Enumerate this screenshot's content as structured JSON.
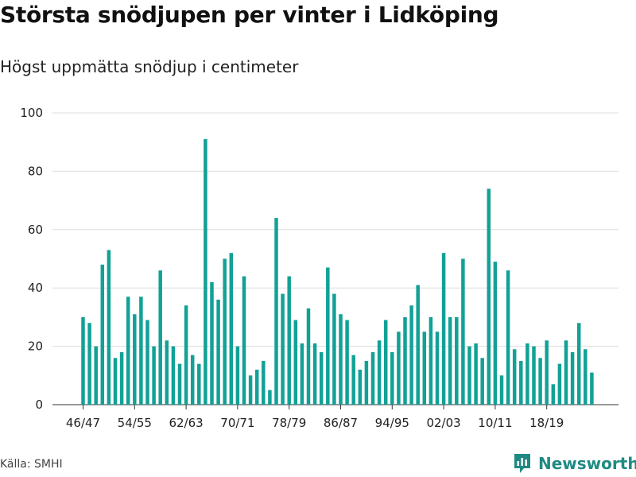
{
  "title": "Största snödjupen per vinter i Lidköping",
  "subtitle": "Högst uppmätta snödjup i centimeter",
  "source": "Källa: SMHI",
  "brand": "Newsworthy",
  "colors": {
    "bar": "#12a196",
    "grid": "#dddddd",
    "brand": "#1f8a83"
  },
  "chart_data": {
    "type": "bar",
    "title": "Största snödjupen per vinter i Lidköping",
    "subtitle": "Högst uppmätta snödjup i centimeter",
    "xlabel": "",
    "ylabel": "",
    "ylim": [
      0,
      100
    ],
    "yticks": [
      0,
      20,
      40,
      60,
      80,
      100
    ],
    "grid": true,
    "categories": [
      "46/47",
      "47/48",
      "48/49",
      "49/50",
      "50/51",
      "51/52",
      "52/53",
      "53/54",
      "54/55",
      "55/56",
      "56/57",
      "57/58",
      "58/59",
      "59/60",
      "60/61",
      "61/62",
      "62/63",
      "63/64",
      "64/65",
      "65/66",
      "66/67",
      "67/68",
      "68/69",
      "69/70",
      "70/71",
      "71/72",
      "72/73",
      "73/74",
      "74/75",
      "75/76",
      "76/77",
      "77/78",
      "78/79",
      "79/80",
      "80/81",
      "81/82",
      "82/83",
      "83/84",
      "84/85",
      "85/86",
      "86/87",
      "87/88",
      "88/89",
      "89/90",
      "90/91",
      "91/92",
      "92/93",
      "93/94",
      "94/95",
      "95/96",
      "96/97",
      "97/98",
      "98/99",
      "99/00",
      "00/01",
      "01/02",
      "02/03",
      "03/04",
      "04/05",
      "05/06",
      "06/07",
      "07/08",
      "08/09",
      "09/10",
      "10/11",
      "11/12",
      "12/13",
      "13/14",
      "14/15",
      "15/16",
      "16/17",
      "17/18",
      "18/19",
      "19/20",
      "20/21",
      "21/22",
      "22/23",
      "23/24",
      "24/25",
      "25/26"
    ],
    "values": [
      30,
      28,
      20,
      48,
      53,
      16,
      18,
      37,
      31,
      37,
      29,
      20,
      46,
      22,
      20,
      14,
      34,
      17,
      14,
      91,
      42,
      36,
      50,
      52,
      20,
      44,
      10,
      12,
      15,
      5,
      64,
      38,
      44,
      29,
      21,
      33,
      21,
      18,
      47,
      38,
      31,
      29,
      17,
      12,
      15,
      18,
      22,
      29,
      18,
      25,
      30,
      34,
      41,
      25,
      30,
      25,
      52,
      30,
      30,
      50,
      20,
      21,
      16,
      74,
      49,
      10,
      46,
      19,
      15,
      21,
      20,
      16,
      22,
      7,
      14,
      22,
      18,
      28,
      19,
      11
    ],
    "xtick_labels": [
      "46/47",
      "54/55",
      "62/63",
      "70/71",
      "78/79",
      "86/87",
      "94/95",
      "02/03",
      "10/11",
      "18/19"
    ]
  }
}
